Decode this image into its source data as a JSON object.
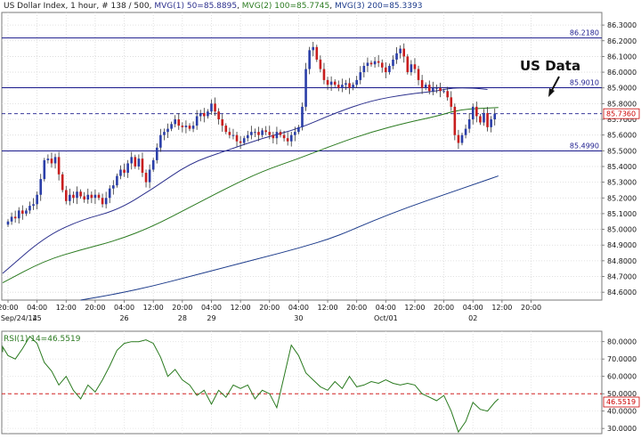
{
  "header": {
    "title": "US Dollar Index",
    "info": ", 1 hour, # 138 / 500, ",
    "ma1": "MVG(1) 50=85.8895",
    "ma2": "MVG(2) 100=85.7745",
    "ma3": "MVG(3) 200=85.3393",
    "ma1_color": "#2b2f8c",
    "ma2_color": "#2a7a1f",
    "ma3_color": "#1b3a8a"
  },
  "chart_data": {
    "type": "candlestick",
    "ylim": [
      84.55,
      86.38
    ],
    "y_ticks": [
      "86.3000",
      "86.2000",
      "86.1000",
      "86.0000",
      "85.9000",
      "85.8000",
      "85.7000",
      "85.6000",
      "85.5000",
      "85.4000",
      "85.3000",
      "85.2000",
      "85.1000",
      "85.0000",
      "84.9000",
      "84.8000",
      "84.7000",
      "84.6000"
    ],
    "y_tick_values": [
      86.3,
      86.2,
      86.1,
      86.0,
      85.9,
      85.8,
      85.7,
      85.6,
      85.5,
      85.4,
      85.3,
      85.2,
      85.1,
      85.0,
      84.9,
      84.8,
      84.7,
      84.6
    ],
    "x_ticks": [
      {
        "label": "20:00",
        "h": 0
      },
      {
        "label": "04:00",
        "h": 8
      },
      {
        "label": "12:00",
        "h": 16
      },
      {
        "label": "20:00",
        "h": 24
      },
      {
        "label": "04:00",
        "h": 32
      },
      {
        "label": "12:00",
        "h": 40
      },
      {
        "label": "20:00",
        "h": 48
      },
      {
        "label": "04:00",
        "h": 56
      },
      {
        "label": "12:00",
        "h": 64
      },
      {
        "label": "20:00",
        "h": 72
      },
      {
        "label": "04:00",
        "h": 80
      },
      {
        "label": "12:00",
        "h": 88
      },
      {
        "label": "20:00",
        "h": 96
      },
      {
        "label": "04:00",
        "h": 104
      },
      {
        "label": "12:00",
        "h": 112
      },
      {
        "label": "20:00",
        "h": 120
      },
      {
        "label": "04:00",
        "h": 128
      },
      {
        "label": "12:00",
        "h": 136
      },
      {
        "label": "20:00",
        "h": 144
      }
    ],
    "date_labels": [
      {
        "label": "Sep/24/14",
        "h": -2
      },
      {
        "label": "25",
        "h": 8
      },
      {
        "label": "26",
        "h": 32
      },
      {
        "label": "28",
        "h": 48
      },
      {
        "label": "29",
        "h": 56
      },
      {
        "label": "30",
        "h": 80
      },
      {
        "label": "Oct/01",
        "h": 104
      },
      {
        "label": "02",
        "h": 128
      }
    ],
    "horizontal_levels": [
      {
        "value": 86.218,
        "label": "86.2180"
      },
      {
        "value": 85.901,
        "label": "85.9010"
      },
      {
        "value": 85.499,
        "label": "85.4990"
      }
    ],
    "last_price": {
      "value": 85.736,
      "label": "85.7360"
    },
    "annotation": "US Data",
    "candles_close": [
      85.05,
      85.08,
      85.07,
      85.12,
      85.1,
      85.12,
      85.15,
      85.16,
      85.22,
      85.32,
      85.44,
      85.45,
      85.42,
      85.46,
      85.35,
      85.25,
      85.18,
      85.22,
      85.2,
      85.24,
      85.21,
      85.19,
      85.22,
      85.2,
      85.22,
      85.2,
      85.16,
      85.2,
      85.26,
      85.28,
      85.34,
      85.38,
      85.36,
      85.42,
      85.46,
      85.4,
      85.45,
      85.36,
      85.3,
      85.38,
      85.44,
      85.52,
      85.6,
      85.62,
      85.64,
      85.67,
      85.7,
      85.66,
      85.65,
      85.66,
      85.64,
      85.66,
      85.72,
      85.74,
      85.72,
      85.75,
      85.8,
      85.75,
      85.7,
      85.66,
      85.62,
      85.6,
      85.6,
      85.56,
      85.55,
      85.58,
      85.6,
      85.62,
      85.62,
      85.6,
      85.63,
      85.62,
      85.6,
      85.58,
      85.62,
      85.6,
      85.58,
      85.56,
      85.6,
      85.62,
      85.65,
      85.78,
      86.02,
      86.14,
      86.16,
      86.08,
      86.02,
      85.95,
      85.92,
      85.94,
      85.92,
      85.9,
      85.92,
      85.93,
      85.9,
      85.92,
      85.95,
      86.0,
      86.04,
      86.06,
      86.05,
      86.07,
      86.06,
      86.03,
      86.0,
      86.04,
      86.08,
      86.12,
      86.15,
      86.1,
      86.0,
      86.05,
      86.02,
      85.95,
      85.9,
      85.92,
      85.88,
      85.9,
      85.9,
      85.88,
      85.88,
      85.84,
      85.78,
      85.6,
      85.55,
      85.6,
      85.64,
      85.7,
      85.78,
      85.72,
      85.68,
      85.74,
      85.65,
      85.7,
      85.736
    ],
    "series": [
      {
        "name": "MVG(1) 50",
        "x": [
          -3,
          10,
          20,
          30,
          40,
          50,
          60,
          70,
          80,
          90,
          100,
          110,
          118,
          122,
          128,
          132
        ],
        "values": [
          84.72,
          84.95,
          85.06,
          85.12,
          85.26,
          85.42,
          85.5,
          85.58,
          85.64,
          85.74,
          85.82,
          85.86,
          85.88,
          85.9,
          85.9,
          85.89
        ]
      },
      {
        "name": "MVG(2) 100",
        "x": [
          -3,
          10,
          20,
          30,
          40,
          50,
          60,
          70,
          80,
          90,
          100,
          110,
          118,
          124,
          130,
          135
        ],
        "values": [
          84.66,
          84.8,
          84.87,
          84.93,
          85.02,
          85.14,
          85.26,
          85.37,
          85.45,
          85.54,
          85.62,
          85.68,
          85.72,
          85.76,
          85.77,
          85.775
        ]
      },
      {
        "name": "MVG(3) 200",
        "x": [
          20,
          30,
          40,
          50,
          60,
          70,
          80,
          90,
          100,
          110,
          120,
          130,
          135
        ],
        "values": [
          84.55,
          84.59,
          84.64,
          84.7,
          84.76,
          84.82,
          84.88,
          84.95,
          85.05,
          85.14,
          85.22,
          85.3,
          85.34
        ]
      }
    ],
    "rsi": {
      "label": "RSI(1) 14=46.5519",
      "last_label": "46.5519",
      "ylim": [
        27,
        86
      ],
      "y_ticks": [
        "80.0000",
        "70.0000",
        "60.0000",
        "50.0000",
        "40.0000",
        "30.0000"
      ],
      "y_tick_values": [
        80,
        70,
        60,
        50,
        40,
        30
      ],
      "reference_level": 50,
      "x": [
        -4,
        -2,
        0,
        2,
        4,
        6,
        8,
        10,
        12,
        14,
        16,
        18,
        20,
        22,
        24,
        26,
        28,
        30,
        32,
        34,
        36,
        38,
        40,
        42,
        44,
        46,
        48,
        50,
        52,
        54,
        56,
        58,
        60,
        62,
        64,
        66,
        68,
        70,
        72,
        74,
        76,
        78,
        80,
        82,
        84,
        86,
        88,
        90,
        92,
        94,
        96,
        98,
        100,
        102,
        104,
        106,
        108,
        110,
        112,
        114,
        116,
        118,
        120,
        122,
        124,
        126,
        128,
        130,
        132,
        134,
        135
      ],
      "values": [
        74,
        77,
        72,
        70,
        76,
        83,
        79,
        68,
        63,
        55,
        60,
        52,
        47,
        55,
        51,
        58,
        66,
        75,
        79,
        80,
        80,
        81,
        79,
        71,
        60,
        64,
        58,
        55,
        49,
        52,
        44,
        52,
        48,
        55,
        53,
        55,
        47,
        52,
        50,
        42,
        60,
        78,
        72,
        62,
        58,
        54,
        52,
        57,
        53,
        60,
        54,
        55,
        57,
        56,
        58,
        56,
        55,
        56,
        55,
        50,
        48,
        46,
        49,
        40,
        28,
        34,
        45,
        41,
        40,
        45,
        47
      ]
    }
  }
}
